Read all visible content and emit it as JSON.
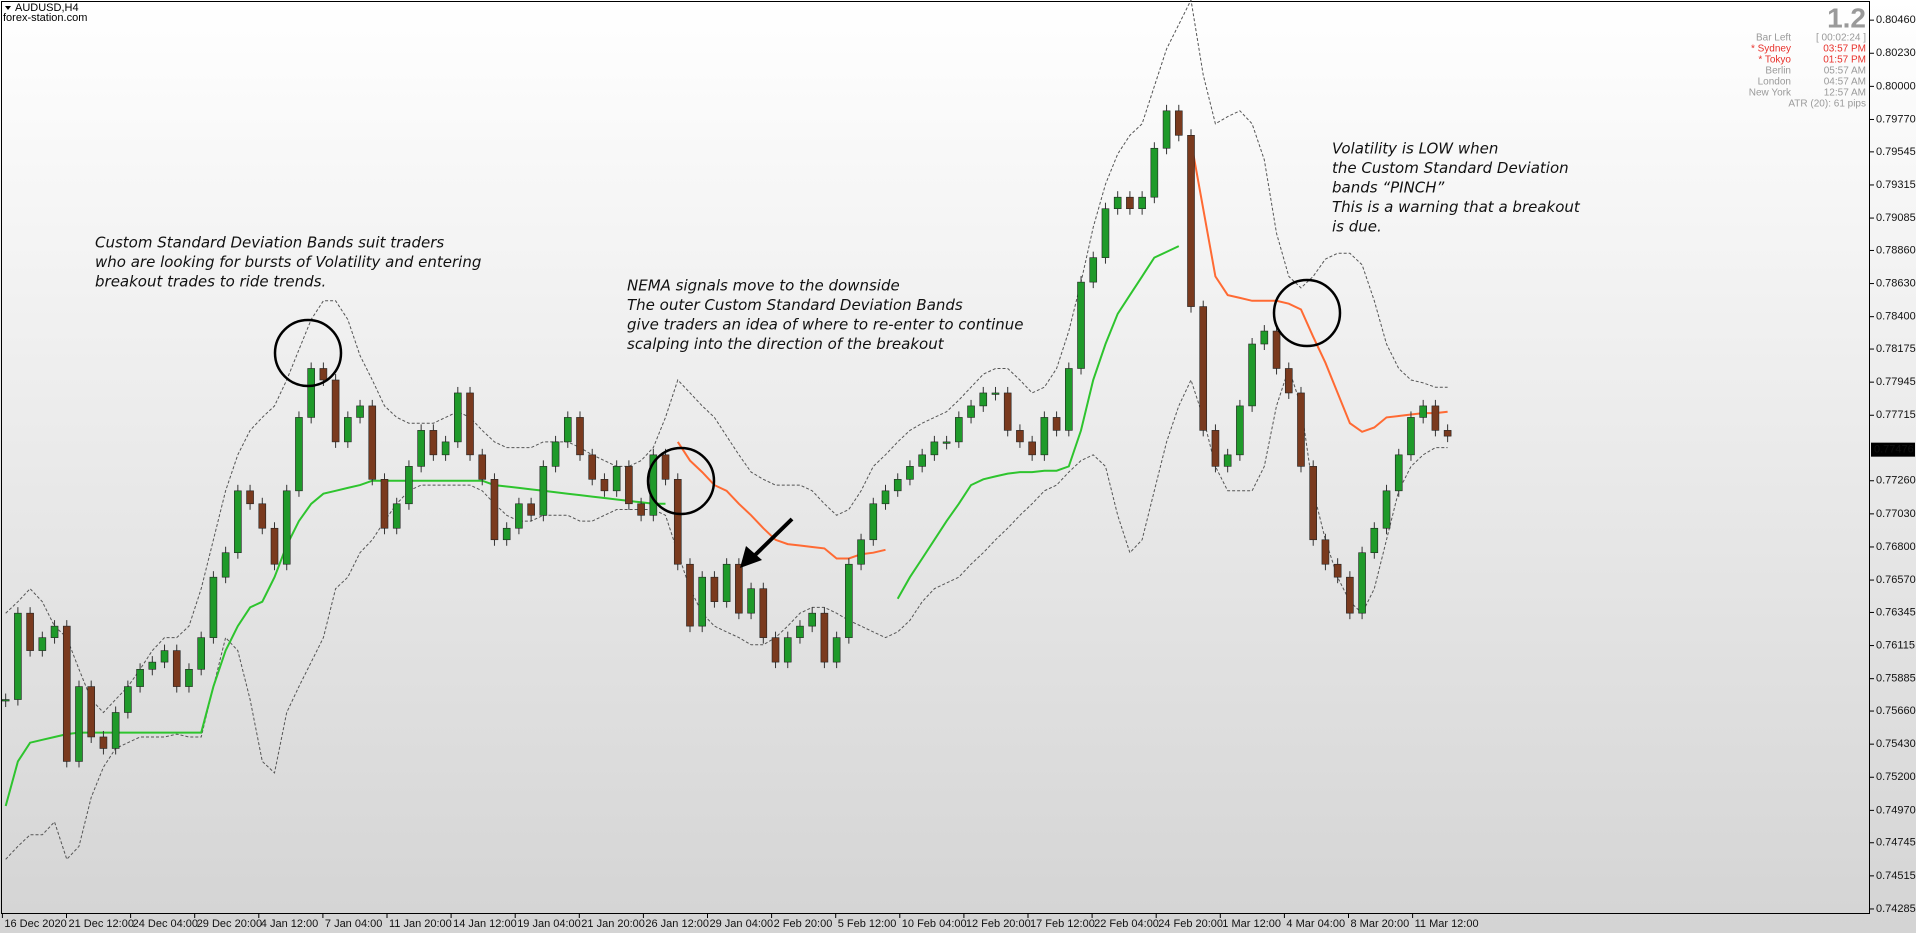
{
  "header": {
    "symbol": "AUDUSD,H4",
    "source": "forex-station.com"
  },
  "info_panel": {
    "version": "1.2",
    "rows": [
      [
        "Bar Left",
        "[ 00:02:24 ]"
      ],
      [
        "* Sydney",
        "03:57 PM"
      ],
      [
        "* Tokyo",
        "01:57 PM"
      ],
      [
        "Berlin",
        "05:57 AM"
      ],
      [
        "London",
        "04:57 AM"
      ],
      [
        "New York",
        "12:57 AM"
      ]
    ],
    "atr": "ATR (20): 61 pips"
  },
  "chart_data": {
    "type": "candlestick",
    "ylim": [
      0.7425,
      0.806
    ],
    "yticks": [
      {
        "value": 0.8046,
        "label": "0.80460"
      },
      {
        "value": 0.8023,
        "label": "0.80230"
      },
      {
        "value": 0.8,
        "label": "0.80000"
      },
      {
        "value": 0.7977,
        "label": "0.79770"
      },
      0.79545,
      0.79315,
      0.79085,
      {
        "value": 0.7886,
        "label": "0.78860"
      },
      {
        "value": 0.7863,
        "label": "0.78630"
      },
      {
        "value": 0.784,
        "label": "0.78400"
      },
      0.78175,
      0.77945,
      0.77715,
      {
        "value": 0.7726,
        "label": "0.77260"
      },
      {
        "value": 0.7703,
        "label": "0.77030"
      },
      {
        "value": 0.768,
        "label": "0.76800"
      },
      {
        "value": 0.7657,
        "label": "0.76570"
      },
      0.76345,
      0.76115,
      0.75885,
      {
        "value": 0.7566,
        "label": "0.75660"
      },
      {
        "value": 0.7543,
        "label": "0.75430"
      },
      {
        "value": 0.752,
        "label": "0.75200"
      },
      {
        "value": 0.7497,
        "label": "0.74970"
      },
      0.74745,
      0.74515,
      0.74285
    ],
    "xticks": [
      "16 Dec 2020",
      "21 Dec 12:00",
      "24 Dec 04:00",
      "29 Dec 20:00",
      "4 Jan 12:00",
      "7 Jan 04:00",
      "11 Jan 20:00",
      "14 Jan 12:00",
      "19 Jan 04:00",
      "21 Jan 20:00",
      "26 Jan 12:00",
      "29 Jan 04:00",
      "2 Feb 20:00",
      "5 Feb 12:00",
      "10 Feb 04:00",
      "12 Feb 20:00",
      "17 Feb 12:00",
      "22 Feb 04:00",
      "24 Feb 20:00",
      "1 Mar 12:00",
      "4 Mar 04:00",
      "8 Mar 20:00",
      "11 Mar 12:00"
    ],
    "last_price": 0.77476,
    "up_color": "#1f9a2a",
    "down_color": "#7a3a1e",
    "close": [
      0.7574,
      0.7634,
      0.7608,
      0.7617,
      0.7625,
      0.7531,
      0.7583,
      0.7548,
      0.754,
      0.7565,
      0.7583,
      0.7595,
      0.76,
      0.7608,
      0.7583,
      0.7595,
      0.7617,
      0.7659,
      0.7676,
      0.7719,
      0.771,
      0.7693,
      0.7668,
      0.7719,
      0.777,
      0.7804,
      0.7796,
      0.7753,
      0.777,
      0.7778,
      0.7727,
      0.7693,
      0.771,
      0.7736,
      0.7761,
      0.7744,
      0.7753,
      0.7787,
      0.7744,
      0.7727,
      0.7685,
      0.7693,
      0.771,
      0.7702,
      0.7736,
      0.7753,
      0.777,
      0.7744,
      0.7727,
      0.7719,
      0.7736,
      0.771,
      0.7702,
      0.7744,
      0.7727,
      0.7668,
      0.7625,
      0.7659,
      0.7642,
      0.7668,
      0.7634,
      0.7651,
      0.7617,
      0.76,
      0.7617,
      0.7625,
      0.7634,
      0.76,
      0.7617,
      0.7668,
      0.7685,
      0.771,
      0.7719,
      0.7727,
      0.7736,
      0.7744,
      0.7753,
      0.7753,
      0.777,
      0.7778,
      0.7787,
      0.7787,
      0.7761,
      0.7753,
      0.7744,
      0.777,
      0.7761,
      0.7804,
      0.7864,
      0.7881,
      0.7915,
      0.7923,
      0.7915,
      0.7923,
      0.7957,
      0.7983,
      0.7966,
      0.7847,
      0.7761,
      0.7736,
      0.7744,
      0.7778,
      0.7821,
      0.783,
      0.7804,
      0.7787,
      0.7736,
      0.7685,
      0.7668,
      0.7659,
      0.7634,
      0.7676,
      0.7693,
      0.7719,
      0.7744,
      0.777,
      0.7778,
      0.7761,
      0.7757
    ],
    "lines": [
      {
        "color": "#555555",
        "dashed": true,
        "values": [
          0.7634,
          0.7642,
          0.7651,
          0.7642,
          0.7625,
          0.7617,
          0.7595,
          0.7574,
          0.7565,
          0.7574,
          0.7583,
          0.7595,
          0.7608,
          0.7617,
          0.7617,
          0.7625,
          0.7651,
          0.7685,
          0.7719,
          0.7744,
          0.7761,
          0.777,
          0.7778,
          0.7796,
          0.7817,
          0.7838,
          0.7851,
          0.7851,
          0.7838,
          0.7813,
          0.7796,
          0.7778,
          0.777,
          0.7766,
          0.7766,
          0.7766,
          0.777,
          0.7774,
          0.777,
          0.7761,
          0.7753,
          0.7749,
          0.7749,
          0.7749,
          0.7753,
          0.7753,
          0.7753,
          0.7749,
          0.7744,
          0.774,
          0.7736,
          0.7736,
          0.774,
          0.7749,
          0.777,
          0.7796,
          0.7787,
          0.7778,
          0.777,
          0.7757,
          0.7744,
          0.7732,
          0.7727,
          0.7723,
          0.7723,
          0.7723,
          0.7719,
          0.771,
          0.7702,
          0.7706,
          0.7719,
          0.7736,
          0.7744,
          0.7753,
          0.7761,
          0.7766,
          0.777,
          0.7774,
          0.7782,
          0.7791,
          0.78,
          0.7804,
          0.7804,
          0.7796,
          0.7787,
          0.7791,
          0.7804,
          0.783,
          0.7864,
          0.7902,
          0.7932,
          0.7953,
          0.7966,
          0.7974,
          0.8,
          0.8026,
          0.8043,
          0.806,
          0.8008,
          0.7974,
          0.7979,
          0.7983,
          0.7974,
          0.7949,
          0.7898,
          0.7868,
          0.786,
          0.7868,
          0.788,
          0.7884,
          0.7884,
          0.7876,
          0.7851,
          0.7821,
          0.7804,
          0.7796,
          0.7794,
          0.7791,
          0.7791
        ]
      },
      {
        "color": "#555555",
        "dashed": true,
        "values": [
          0.7463,
          0.7472,
          0.748,
          0.748,
          0.7489,
          0.7463,
          0.7472,
          0.7506,
          0.7527,
          0.754,
          0.7544,
          0.7548,
          0.7548,
          0.7548,
          0.755,
          0.7548,
          0.7548,
          0.7583,
          0.7617,
          0.7608,
          0.7574,
          0.7531,
          0.7523,
          0.7565,
          0.7583,
          0.76,
          0.7617,
          0.7651,
          0.7659,
          0.7676,
          0.7685,
          0.7698,
          0.771,
          0.7719,
          0.7723,
          0.7723,
          0.7723,
          0.7723,
          0.7723,
          0.7719,
          0.771,
          0.7702,
          0.7698,
          0.7698,
          0.7702,
          0.7702,
          0.7702,
          0.7698,
          0.7698,
          0.7702,
          0.7706,
          0.7706,
          0.7706,
          0.7706,
          0.7702,
          0.7676,
          0.7651,
          0.7634,
          0.7625,
          0.7621,
          0.7617,
          0.7612,
          0.7612,
          0.7617,
          0.7625,
          0.7634,
          0.7638,
          0.7638,
          0.7634,
          0.7629,
          0.7625,
          0.7621,
          0.7617,
          0.7621,
          0.7629,
          0.7642,
          0.7651,
          0.7655,
          0.7659,
          0.7668,
          0.7676,
          0.7685,
          0.7693,
          0.7702,
          0.771,
          0.7719,
          0.7723,
          0.7732,
          0.774,
          0.7744,
          0.7736,
          0.7702,
          0.7676,
          0.7685,
          0.7719,
          0.7753,
          0.7778,
          0.7796,
          0.777,
          0.7736,
          0.7719,
          0.7719,
          0.7719,
          0.7736,
          0.7778,
          0.7804,
          0.7778,
          0.7719,
          0.7685,
          0.7659,
          0.7642,
          0.7634,
          0.7651,
          0.7685,
          0.7719,
          0.7736,
          0.7744,
          0.7749,
          0.7749
        ]
      },
      {
        "color": "#2ec42e",
        "dashed": false,
        "values": [
          0.75,
          0.7531,
          0.7544,
          0.7546,
          0.7548,
          0.755,
          0.7551,
          0.7551,
          0.7551,
          0.7551,
          0.7551,
          0.7551,
          0.7551,
          0.7551,
          0.7551,
          0.7551,
          0.7551,
          0.7583,
          0.7608,
          0.7625,
          0.7638,
          0.7642,
          0.7659,
          0.7681,
          0.7698,
          0.771,
          0.7717,
          0.7719,
          0.7721,
          0.7723,
          0.7726,
          0.7726,
          0.7726,
          0.7726,
          0.7726,
          0.7726,
          0.7726,
          0.7726,
          0.7726,
          0.7726,
          0.7723,
          0.7722,
          0.7721,
          0.772,
          0.7719,
          0.7718,
          0.7717,
          0.7716,
          0.7715,
          0.7714,
          0.7713,
          0.7712,
          0.7711,
          0.771,
          0.771,
          null,
          null,
          null,
          null,
          null,
          null,
          null,
          null,
          null,
          null,
          null,
          null,
          null,
          null,
          null,
          null,
          null,
          null,
          0.7644,
          0.7659,
          0.7672,
          0.7685,
          0.7698,
          0.771,
          0.7723,
          0.7727,
          0.7729,
          0.7731,
          0.7732,
          0.7732,
          0.7733,
          0.7733,
          0.7736,
          0.7761,
          0.7796,
          0.7821,
          0.7842,
          0.7855,
          0.7868,
          0.7881,
          0.7885,
          0.7889,
          null,
          null,
          null,
          null,
          null,
          null,
          null,
          null,
          null,
          null,
          null,
          null,
          null,
          null,
          null,
          null,
          null,
          null,
          null,
          null,
          null,
          null
        ]
      },
      {
        "color": "#ff6a33",
        "dashed": false,
        "values": [
          null,
          null,
          null,
          null,
          null,
          null,
          null,
          null,
          null,
          null,
          null,
          null,
          null,
          null,
          null,
          null,
          null,
          null,
          null,
          null,
          null,
          null,
          null,
          null,
          null,
          null,
          null,
          null,
          null,
          null,
          null,
          null,
          null,
          null,
          null,
          null,
          null,
          null,
          null,
          null,
          null,
          null,
          null,
          null,
          null,
          null,
          null,
          null,
          null,
          null,
          null,
          null,
          null,
          null,
          null,
          0.7753,
          0.774,
          0.7732,
          0.7723,
          0.7719,
          0.771,
          0.7702,
          0.7693,
          0.7685,
          0.7682,
          0.7681,
          0.768,
          0.7679,
          0.7672,
          0.7672,
          0.7675,
          0.7676,
          0.7678,
          null,
          null,
          null,
          null,
          null,
          null,
          null,
          null,
          null,
          null,
          null,
          null,
          null,
          null,
          null,
          null,
          null,
          null,
          null,
          null,
          null,
          null,
          null,
          null,
          0.7962,
          0.7915,
          0.7868,
          0.7855,
          0.7853,
          0.7851,
          0.7851,
          0.7851,
          0.7849,
          0.7845,
          0.7826,
          0.7808,
          0.7787,
          0.7766,
          0.776,
          0.7763,
          0.777,
          0.7771,
          0.7772,
          0.7773,
          0.7773,
          0.7774
        ]
      }
    ],
    "annotations": [
      [
        "Custom Standard Deviation Bands suit traders",
        "who are looking for bursts of Volatility and entering",
        "breakout trades to ride trends."
      ],
      [
        "NEMA signals move to the downside",
        "The outer Custom Standard Deviation Bands",
        "give traders  an idea of where to re-enter to continue",
        "scalping into the direction of the breakout"
      ],
      [
        "Volatility is LOW when",
        "the Custom Standard Deviation",
        "bands “PINCH”",
        "This is a warning that a breakout",
        "is due."
      ]
    ]
  }
}
